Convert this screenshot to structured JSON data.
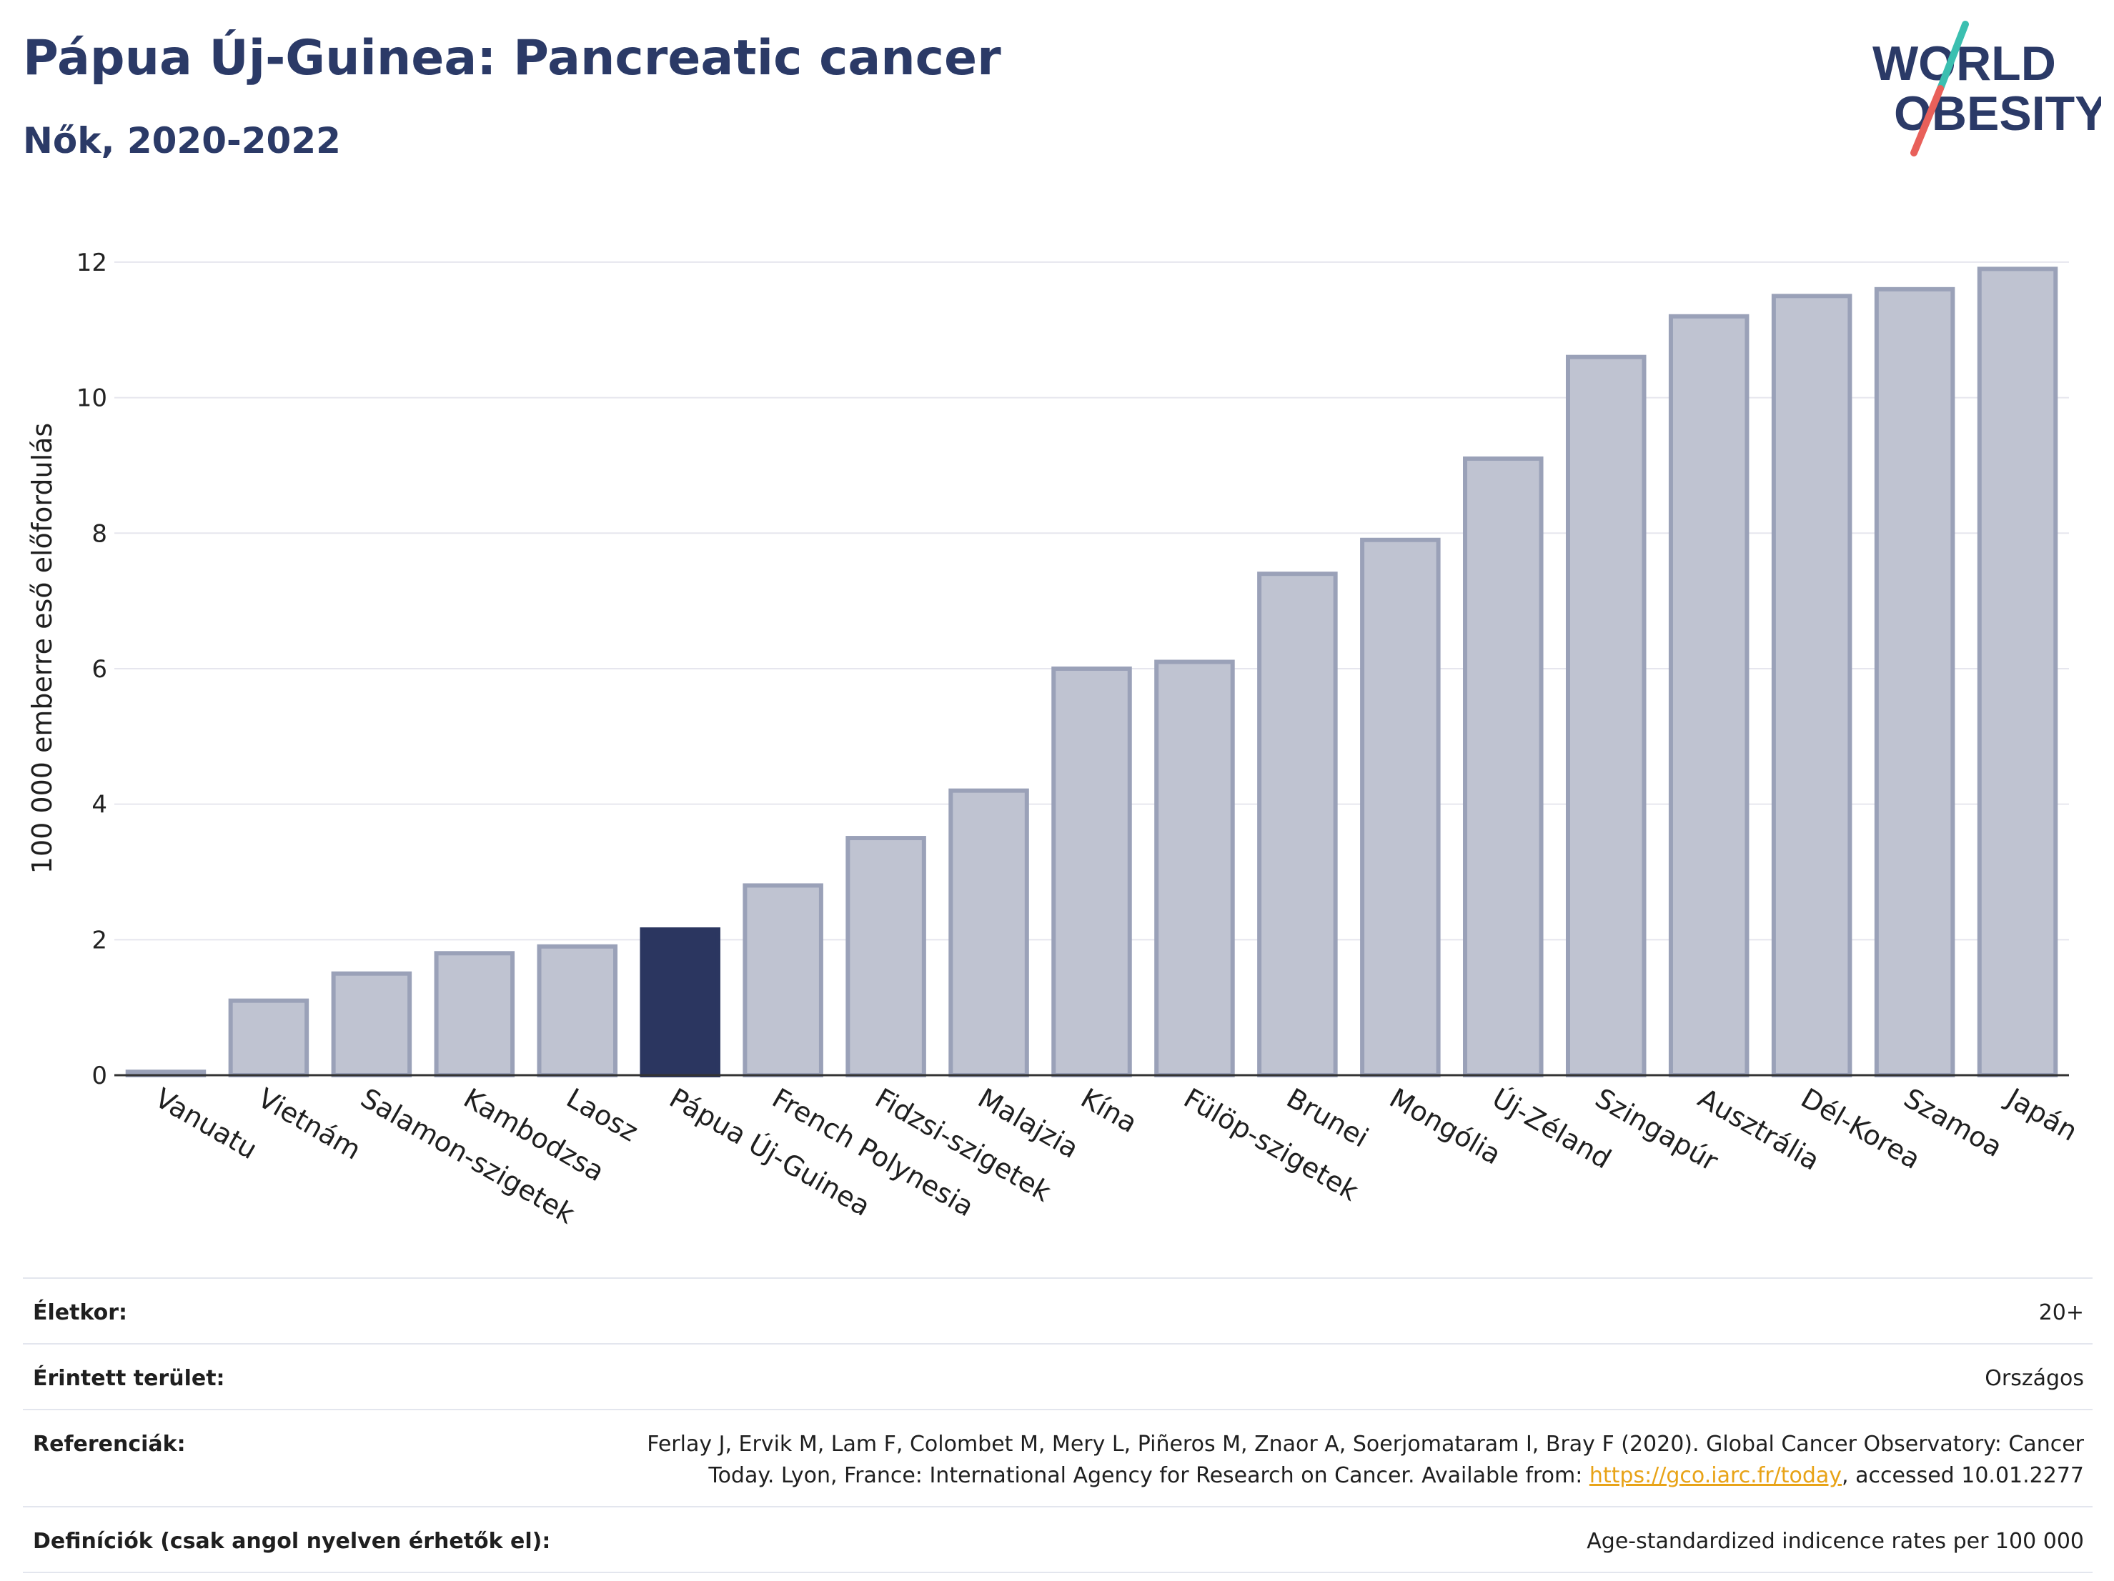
{
  "header": {
    "title": "Pápua Új-Guinea: Pancreatic cancer",
    "subtitle": "Nők, 2020-2022"
  },
  "logo": {
    "line1": "WORLD",
    "line2": "OBESITY",
    "slash_color_top": "#3bbfb0",
    "slash_color_bottom": "#e8605a",
    "text_color": "#2b3a67"
  },
  "chart_data": {
    "type": "bar",
    "title": "",
    "xlabel": "",
    "ylabel": "100 000 emberre eső előfordulás",
    "ylim": [
      0,
      12.6
    ],
    "yticks": [
      0,
      2,
      4,
      6,
      8,
      10,
      12
    ],
    "grid": true,
    "highlight_category": "Pápua Új-Guinea",
    "colors": {
      "bar": "#bfc3d1",
      "bar_border": "#9aa1b8",
      "highlight": "#2b3660",
      "axis": "#333333",
      "grid": "#e6e6ee"
    },
    "categories": [
      "Vanuatu",
      "Vietnám",
      "Salamon-szigetek",
      "Kambodzsa",
      "Laosz",
      "Pápua Új-Guinea",
      "French Polynesia",
      "Fidzsi-szigetek",
      "Malajzia",
      "Kína",
      "Fülöp-szigetek",
      "Brunei",
      "Mongólia",
      "Új-Zéland",
      "Szingapúr",
      "Ausztrália",
      "Dél-Korea",
      "Szamoa",
      "Japán"
    ],
    "values": [
      0.05,
      1.1,
      1.5,
      1.8,
      1.9,
      2.15,
      2.8,
      3.5,
      4.2,
      6.0,
      6.1,
      7.4,
      7.9,
      9.1,
      10.6,
      11.2,
      11.5,
      11.6,
      11.9
    ]
  },
  "meta": {
    "age_label": "Életkor:",
    "age_value": "20+",
    "area_label": "Érintett terület:",
    "area_value": "Országos",
    "ref_label": "Referenciák:",
    "ref_text_before": "Ferlay J, Ervik M, Lam F, Colombet M, Mery L, Piñeros M, Znaor A, Soerjomataram I, Bray F (2020). Global Cancer Observatory: Cancer Today. Lyon, France: International Agency for Research on Cancer. Available from: ",
    "ref_link": "https://gco.iarc.fr/today",
    "ref_text_after": ", accessed 10.01.2277",
    "def_label": "Definíciók (csak angol nyelven érhetők el):",
    "def_value": "Age-standardized indicence rates per 100 000"
  }
}
